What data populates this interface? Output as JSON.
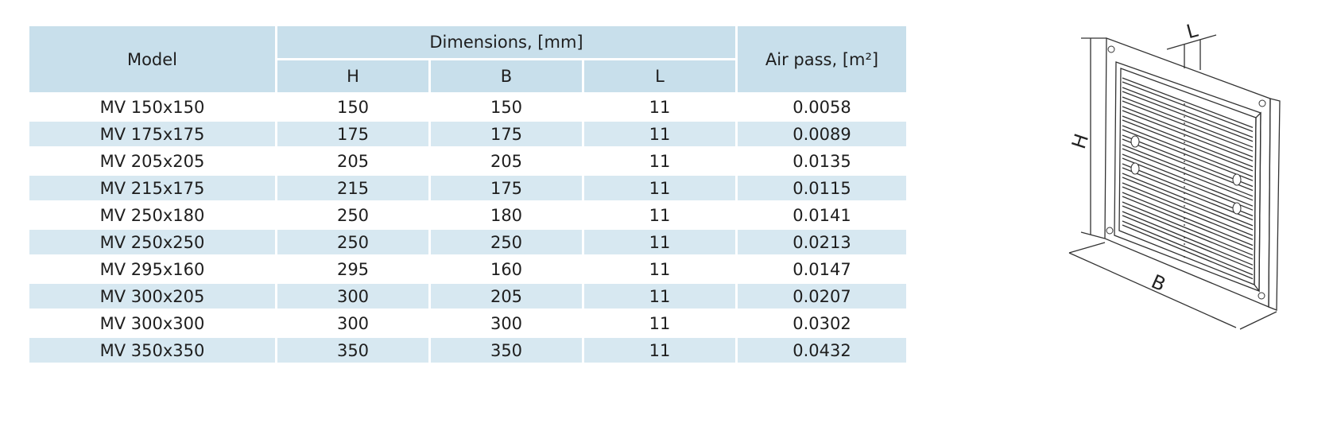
{
  "table": {
    "header": {
      "model": "Model",
      "dimensions": "Dimensions, [mm]",
      "h": "H",
      "b": "B",
      "l": "L",
      "air_pass": "Air pass, [m²]"
    },
    "rows": [
      [
        "MV 150x150",
        "150",
        "150",
        "11",
        "0.0058"
      ],
      [
        "MV 175x175",
        "175",
        "175",
        "11",
        "0.0089"
      ],
      [
        "MV 205x205",
        "205",
        "205",
        "11",
        "0.0135"
      ],
      [
        "MV 215x175",
        "215",
        "175",
        "11",
        "0.0115"
      ],
      [
        "MV 250x180",
        "250",
        "180",
        "11",
        "0.0141"
      ],
      [
        "MV 250x250",
        "250",
        "250",
        "11",
        "0.0213"
      ],
      [
        "MV 295x160",
        "295",
        "160",
        "11",
        "0.0147"
      ],
      [
        "MV 300x205",
        "300",
        "205",
        "11",
        "0.0207"
      ],
      [
        "MV 300x300",
        "300",
        "300",
        "11",
        "0.0302"
      ],
      [
        "MV 350x350",
        "350",
        "350",
        "11",
        "0.0432"
      ]
    ]
  },
  "diagram": {
    "labels": {
      "h": "H",
      "b": "B",
      "l": "L"
    }
  }
}
